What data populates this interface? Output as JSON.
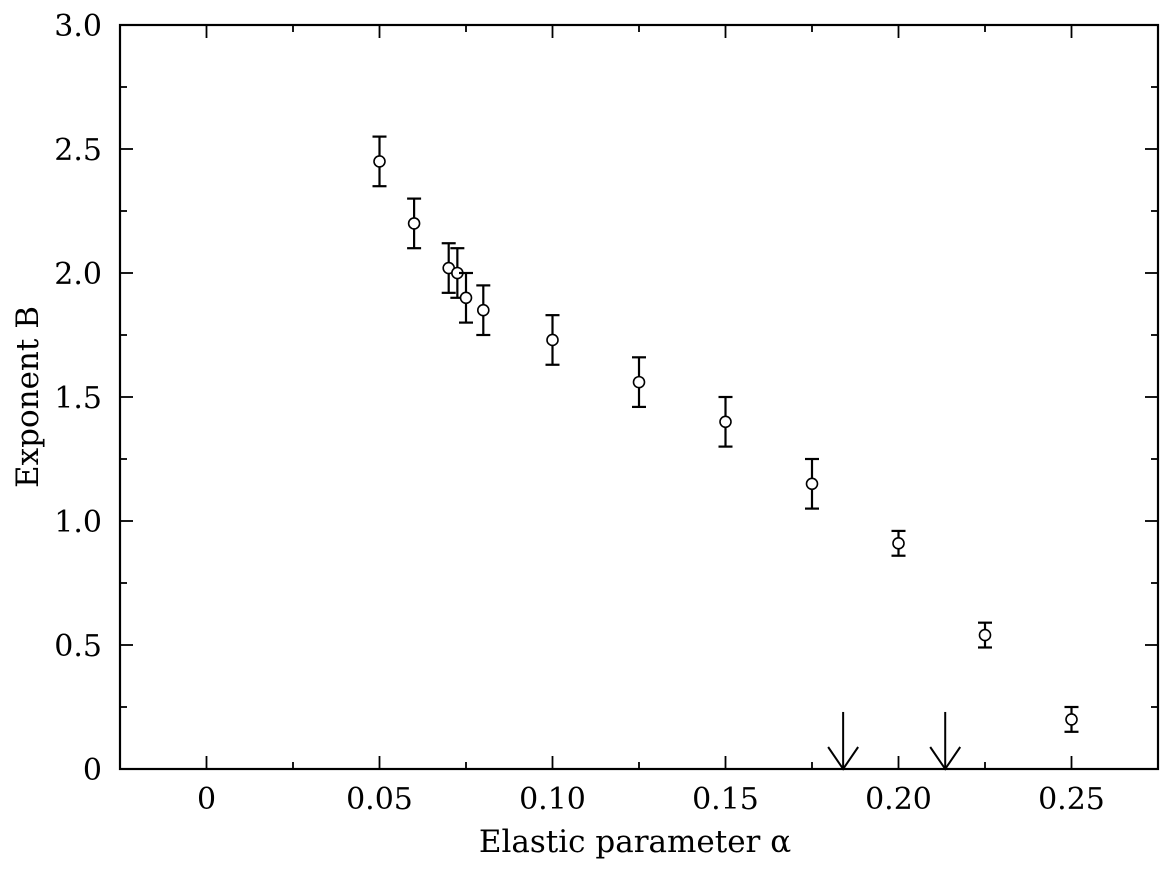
{
  "chart_data": {
    "type": "scatter",
    "title": "",
    "xlabel": "Elastic parameter α",
    "ylabel": "Exponent B",
    "xlim": [
      -0.025,
      0.275
    ],
    "ylim": [
      0,
      3.0
    ],
    "grid": false,
    "x_ticks": [
      0,
      0.05,
      0.1,
      0.15,
      0.2,
      0.25
    ],
    "x_tick_labels": [
      "0",
      "0.05",
      "0.10",
      "0.15",
      "0.20",
      "0.25"
    ],
    "y_ticks": [
      0,
      0.5,
      1.0,
      1.5,
      2.0,
      2.5,
      3.0
    ],
    "y_tick_labels": [
      "0",
      "0.5",
      "1.0",
      "1.5",
      "2.0",
      "2.5",
      "3.0"
    ],
    "marker": "open-circle",
    "series": [
      {
        "x": [
          0.05,
          0.06,
          0.07,
          0.0725,
          0.075,
          0.08,
          0.1,
          0.125,
          0.15,
          0.175,
          0.2,
          0.225,
          0.25
        ],
        "y": [
          2.45,
          2.2,
          2.02,
          2.0,
          1.9,
          1.85,
          1.73,
          1.56,
          1.4,
          1.15,
          0.91,
          0.54,
          0.2
        ],
        "error": [
          0.1,
          0.1,
          0.1,
          0.1,
          0.1,
          0.1,
          0.1,
          0.1,
          0.1,
          0.1,
          0.05,
          0.05,
          0.05
        ]
      }
    ],
    "annotations": [
      {
        "type": "arrow-down",
        "x": 0.184,
        "y_from": 0.23,
        "y_to": 0
      },
      {
        "type": "arrow-down",
        "x": 0.2135,
        "y_from": 0.23,
        "y_to": 0
      }
    ]
  }
}
